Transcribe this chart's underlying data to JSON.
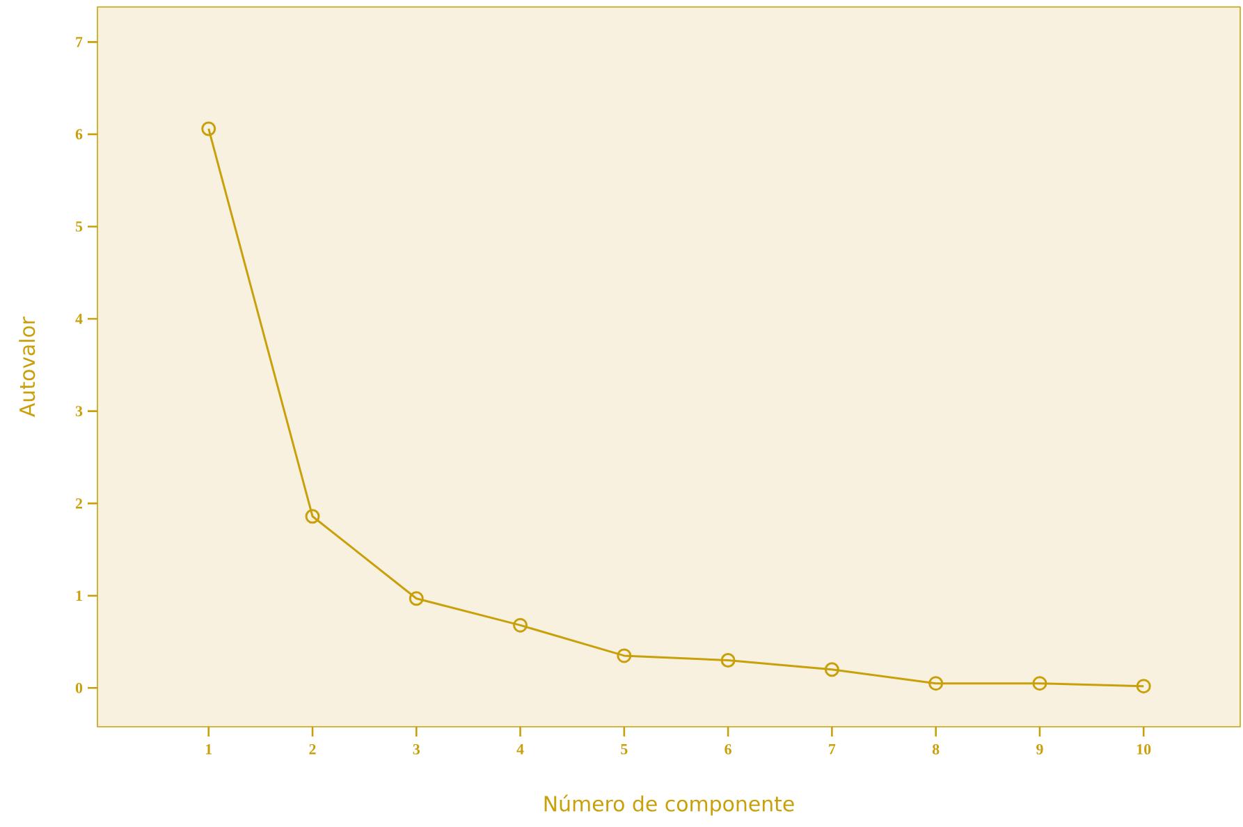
{
  "chart_data": {
    "type": "line",
    "xlabel": "Número de componente",
    "ylabel": "Autovalor",
    "x": [
      1,
      2,
      3,
      4,
      5,
      6,
      7,
      8,
      9,
      10
    ],
    "series": [
      {
        "color": "#c9a009",
        "values": [
          6.06,
          1.86,
          0.97,
          0.68,
          0.35,
          0.3,
          0.2,
          0.05,
          0.05,
          0.02
        ]
      }
    ],
    "xlim": [
      -0.07,
      10.93
    ],
    "xticks": [
      1,
      2,
      3,
      4,
      5,
      6,
      7,
      8,
      9,
      10
    ],
    "ylim": [
      -0.42,
      7.38
    ],
    "yticks": [
      0,
      1,
      2,
      3,
      4,
      5,
      6,
      7
    ],
    "grid": false,
    "marker": "circle",
    "line_style": "solid"
  }
}
